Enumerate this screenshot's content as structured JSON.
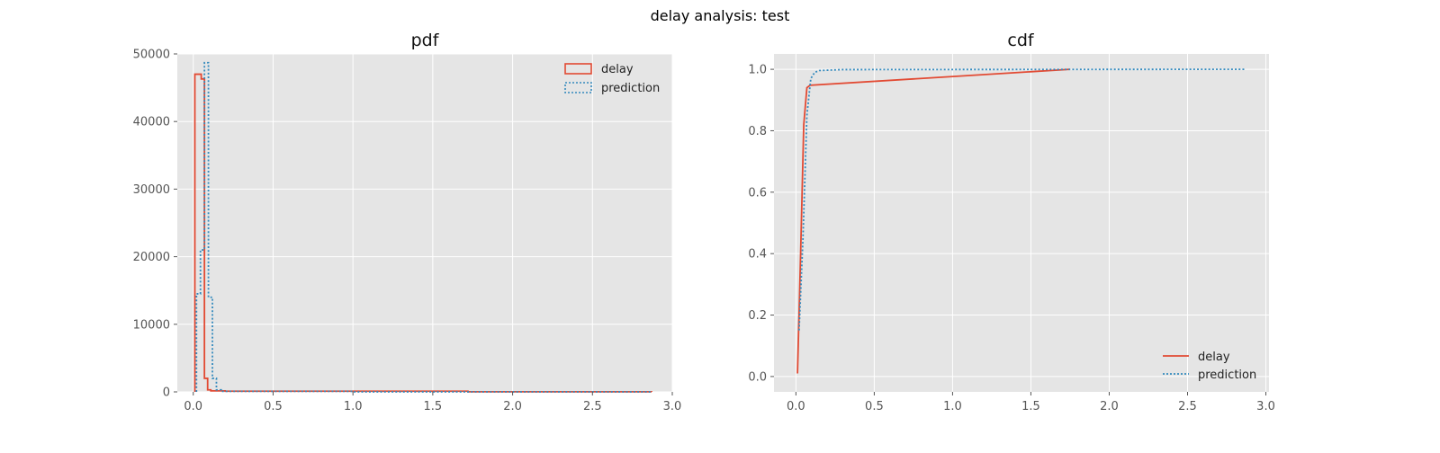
{
  "figure": {
    "suptitle": "delay analysis: test",
    "colors": {
      "background": "#E5E5E5",
      "grid": "#FFFFFF",
      "delay": "#E24A33",
      "prediction": "#348ABD"
    }
  },
  "chart_data": [
    {
      "type": "histogram",
      "title": "pdf",
      "xlabel": "",
      "ylabel": "",
      "xlim": [
        -0.1,
        3.0
      ],
      "ylim": [
        0,
        50000
      ],
      "xticks": [
        0.0,
        0.5,
        1.0,
        1.5,
        2.0,
        2.5,
        3.0
      ],
      "xtick_labels": [
        "0.0",
        "0.5",
        "1.0",
        "1.5",
        "2.0",
        "2.5",
        "3.0"
      ],
      "yticks": [
        0,
        10000,
        20000,
        30000,
        40000,
        50000
      ],
      "ytick_labels": [
        "0",
        "10000",
        "20000",
        "30000",
        "40000",
        "50000"
      ],
      "grid": true,
      "legend_position": "top-right",
      "series": [
        {
          "name": "delay",
          "style": "solid step",
          "color": "#E24A33",
          "bins": [
            [
              0.01,
              0.03,
              47000
            ],
            [
              0.03,
              0.05,
              47000
            ],
            [
              0.05,
              0.07,
              46300
            ],
            [
              0.07,
              0.09,
              2000
            ],
            [
              0.09,
              0.11,
              300
            ],
            [
              0.11,
              0.2,
              150
            ],
            [
              0.2,
              1.72,
              100
            ],
            [
              1.72,
              2.87,
              20
            ]
          ]
        },
        {
          "name": "prediction",
          "style": "dotted step",
          "color": "#348ABD",
          "bins": [
            [
              0.02,
              0.045,
              14500
            ],
            [
              0.045,
              0.07,
              21000
            ],
            [
              0.07,
              0.095,
              48700
            ],
            [
              0.095,
              0.12,
              14000
            ],
            [
              0.12,
              0.145,
              2000
            ],
            [
              0.145,
              0.175,
              300
            ],
            [
              0.175,
              1.0,
              80
            ],
            [
              1.0,
              2.87,
              10
            ]
          ]
        }
      ]
    },
    {
      "type": "line",
      "title": "cdf",
      "xlabel": "",
      "ylabel": "",
      "xlim": [
        -0.14,
        3.02
      ],
      "ylim": [
        -0.05,
        1.05
      ],
      "xticks": [
        0.0,
        0.5,
        1.0,
        1.5,
        2.0,
        2.5,
        3.0
      ],
      "xtick_labels": [
        "0.0",
        "0.5",
        "1.0",
        "1.5",
        "2.0",
        "2.5",
        "3.0"
      ],
      "yticks": [
        0.0,
        0.2,
        0.4,
        0.6,
        0.8,
        1.0
      ],
      "ytick_labels": [
        "0.0",
        "0.2",
        "0.4",
        "0.6",
        "0.8",
        "1.0"
      ],
      "grid": true,
      "legend_position": "lower-right",
      "series": [
        {
          "name": "delay",
          "style": "solid",
          "color": "#E24A33",
          "x": [
            0.01,
            0.03,
            0.05,
            0.07,
            0.09,
            1.75
          ],
          "y": [
            0.01,
            0.4,
            0.82,
            0.94,
            0.948,
            1.0
          ]
        },
        {
          "name": "prediction",
          "style": "dotted",
          "color": "#348ABD",
          "x": [
            0.02,
            0.045,
            0.07,
            0.095,
            0.12,
            0.15,
            0.3,
            2.87
          ],
          "y": [
            0.15,
            0.45,
            0.85,
            0.97,
            0.99,
            0.996,
            0.999,
            1.0
          ]
        }
      ]
    }
  ]
}
